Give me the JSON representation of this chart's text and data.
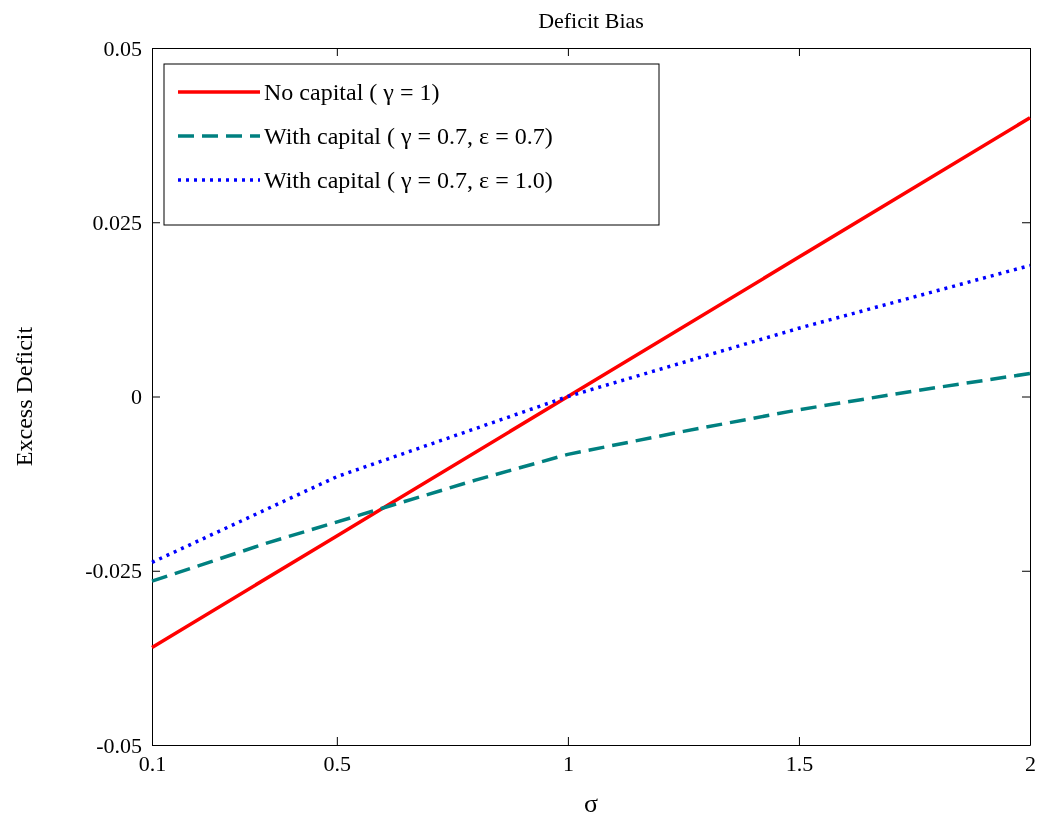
{
  "chart_data": {
    "type": "line",
    "title": "Deficit Bias",
    "xlabel": "σ",
    "ylabel": "Excess Deficit",
    "xlim": [
      0.1,
      2
    ],
    "xticks": [
      0.1,
      0.5,
      1,
      1.5,
      2
    ],
    "ylim": [
      -0.05,
      0.05
    ],
    "yticks": [
      -0.05,
      -0.025,
      0,
      0.025,
      0.05
    ],
    "grid": false,
    "legend": "top left",
    "series": [
      {
        "name": "No capital ( γ = 1)",
        "color": "#ff0000",
        "line_style": "solid",
        "x": [
          0.1,
          0.5,
          1,
          1.5,
          2
        ],
        "values": [
          -0.036,
          -0.02,
          0,
          0.02,
          0.04
        ]
      },
      {
        "name": "With capital ( γ = 0.7, ε = 0.7)",
        "color": "#008080",
        "line_style": "dashed",
        "x": [
          0.1,
          0.35,
          0.6,
          0.8,
          1,
          1.25,
          1.5,
          1.75,
          2
        ],
        "values": [
          -0.0265,
          -0.021,
          -0.016,
          -0.012,
          -0.0083,
          -0.005,
          -0.0019,
          0.0008,
          0.0033
        ]
      },
      {
        "name": "With capital ( γ = 0.7, ε = 1.0)",
        "color": "#0000ff",
        "line_style": "dotted",
        "x": [
          0.1,
          0.5,
          1,
          1.5,
          2
        ],
        "values": [
          -0.0238,
          -0.0115,
          0,
          0.0098,
          0.0188
        ]
      }
    ]
  }
}
